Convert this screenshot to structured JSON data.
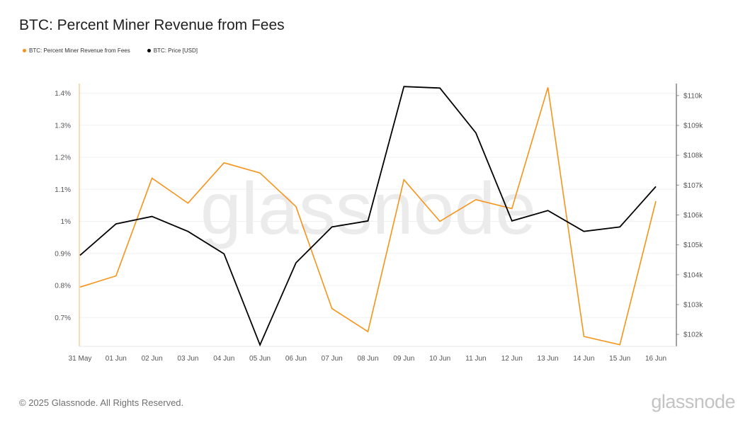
{
  "title": "BTC: Percent Miner Revenue from Fees",
  "legend": [
    {
      "label": "BTC: Percent Miner Revenue from Fees",
      "color": "#f7931a"
    },
    {
      "label": "BTC: Price [USD]",
      "color": "#000000"
    }
  ],
  "watermark": "glassnode",
  "footer": {
    "copyright": "© 2025 Glassnode. All Rights Reserved.",
    "logo": "glassnode"
  },
  "chart_data": {
    "type": "line",
    "title": "BTC: Percent Miner Revenue from Fees",
    "x": [
      "31 May",
      "01 Jun",
      "02 Jun",
      "03 Jun",
      "04 Jun",
      "05 Jun",
      "06 Jun",
      "07 Jun",
      "08 Jun",
      "09 Jun",
      "10 Jun",
      "11 Jun",
      "12 Jun",
      "13 Jun",
      "14 Jun",
      "15 Jun",
      "16 Jun"
    ],
    "series": [
      {
        "name": "BTC: Percent Miner Revenue from Fees",
        "axis": "left",
        "color": "#f7931a",
        "values": [
          0.795,
          0.83,
          1.135,
          1.057,
          1.183,
          1.151,
          1.046,
          0.728,
          0.656,
          1.13,
          1.0,
          1.068,
          1.04,
          1.418,
          0.641,
          0.615,
          1.063
        ]
      },
      {
        "name": "BTC: Price [USD]",
        "axis": "right",
        "color": "#000000",
        "values": [
          104650,
          105700,
          105950,
          105450,
          104700,
          101650,
          104400,
          105600,
          105800,
          110300,
          110250,
          108750,
          105800,
          106150,
          105450,
          105600,
          106950
        ]
      }
    ],
    "y_left": {
      "ylim": [
        0.61,
        1.43
      ],
      "ticks": [
        0.7,
        0.8,
        0.9,
        1.0,
        1.1,
        1.2,
        1.3,
        1.4
      ],
      "tick_labels": [
        "0.7%",
        "0.8%",
        "0.9%",
        "1%",
        "1.1%",
        "1.2%",
        "1.3%",
        "1.4%"
      ]
    },
    "y_right": {
      "ylim": [
        101600,
        110400
      ],
      "ticks": [
        102000,
        103000,
        104000,
        105000,
        106000,
        107000,
        108000,
        109000,
        110000
      ],
      "tick_labels": [
        "$102k",
        "$103k",
        "$104k",
        "$105k",
        "$106k",
        "$107k",
        "$108k",
        "$109k",
        "$110k"
      ]
    },
    "grid": true,
    "legend_position": "top-left"
  }
}
